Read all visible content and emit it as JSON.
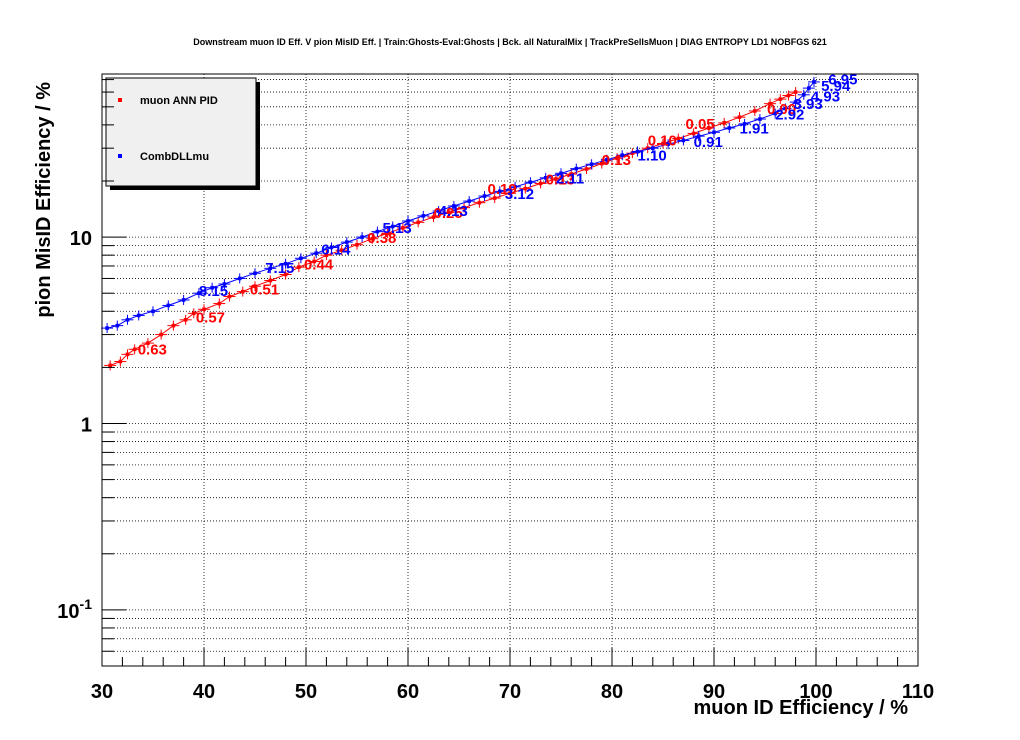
{
  "chart_data": {
    "type": "scatter",
    "title": "Downstream muon ID Eff. V pion MisID Eff. | Train:Ghosts-Eval:Ghosts | Bck. all NaturalMix | TrackPreSelIsMuon | DIAG ENTROPY LD1 NOBFGS 621",
    "xlabel": "muon ID Efficiency / %",
    "ylabel": "pion MisID Efficiency / %",
    "xlim": [
      30,
      110
    ],
    "ylim": [
      0.05,
      75
    ],
    "yscale": "log",
    "grid": true,
    "legend_position": "top-left",
    "x_ticks": [
      "30",
      "40",
      "50",
      "60",
      "70",
      "80",
      "90",
      "100",
      "110"
    ],
    "y_ticks": [
      {
        "value": 0.1,
        "base": "10",
        "exp": "-1"
      },
      {
        "value": 1,
        "base": "1",
        "exp": ""
      },
      {
        "value": 10,
        "base": "10",
        "exp": ""
      }
    ],
    "series": [
      {
        "name": "muon ANN PID",
        "color": "#ff0000",
        "points": [
          [
            30.8,
            2.05
          ],
          [
            31.8,
            2.15
          ],
          [
            32.5,
            2.35
          ],
          [
            33.2,
            2.5
          ],
          [
            34.5,
            2.7
          ],
          [
            35.8,
            3.0
          ],
          [
            37.0,
            3.35
          ],
          [
            38.2,
            3.6
          ],
          [
            39.0,
            3.9
          ],
          [
            40.0,
            4.1
          ],
          [
            41.5,
            4.4
          ],
          [
            42.5,
            4.8
          ],
          [
            43.8,
            5.1
          ],
          [
            45.0,
            5.45
          ],
          [
            46.5,
            5.85
          ],
          [
            48.0,
            6.3
          ],
          [
            49.3,
            6.9
          ],
          [
            50.8,
            7.4
          ],
          [
            52.0,
            8.0
          ],
          [
            53.5,
            8.5
          ],
          [
            55.0,
            9.1
          ],
          [
            56.5,
            9.8
          ],
          [
            58.0,
            10.5
          ],
          [
            59.5,
            11.2
          ],
          [
            61.0,
            12.0
          ],
          [
            62.5,
            12.8
          ],
          [
            64.0,
            13.6
          ],
          [
            65.5,
            14.4
          ],
          [
            67.0,
            15.3
          ],
          [
            68.5,
            16.2
          ],
          [
            70.0,
            17.2
          ],
          [
            71.5,
            18.2
          ],
          [
            73.0,
            19.4
          ],
          [
            74.5,
            20.5
          ],
          [
            76.0,
            21.8
          ],
          [
            77.5,
            23.2
          ],
          [
            79.0,
            24.8
          ],
          [
            80.5,
            26.5
          ],
          [
            82.0,
            28.2
          ],
          [
            83.5,
            30.0
          ],
          [
            85.0,
            31.8
          ],
          [
            86.5,
            33.8
          ],
          [
            88.0,
            36.0
          ],
          [
            89.5,
            38.5
          ],
          [
            91.0,
            41.0
          ],
          [
            92.5,
            44.0
          ],
          [
            94.0,
            47.5
          ],
          [
            95.5,
            52.0
          ],
          [
            96.5,
            55.0
          ],
          [
            97.3,
            57.5
          ],
          [
            98.0,
            60.0
          ]
        ],
        "labels": [
          {
            "x": 33.5,
            "y": 2.52,
            "text": "0.63"
          },
          {
            "x": 39.2,
            "y": 3.75,
            "text": "0.57"
          },
          {
            "x": 44.5,
            "y": 5.3,
            "text": "0.51"
          },
          {
            "x": 49.8,
            "y": 7.2,
            "text": "0.44"
          },
          {
            "x": 56.0,
            "y": 10.0,
            "text": "0.38"
          },
          {
            "x": 62.5,
            "y": 13.6,
            "text": "0.25"
          },
          {
            "x": 67.8,
            "y": 18.3,
            "text": "0.19"
          },
          {
            "x": 73.5,
            "y": 20.6,
            "text": "0.13"
          },
          {
            "x": 79.0,
            "y": 26.2,
            "text": "0.13"
          },
          {
            "x": 83.5,
            "y": 33.4,
            "text": "0.10"
          },
          {
            "x": 87.2,
            "y": 41.0,
            "text": "0.05"
          },
          {
            "x": 95.2,
            "y": 49.2,
            "text": "0.00"
          }
        ]
      },
      {
        "name": "CombDLLmu",
        "color": "#0000ff",
        "points": [
          [
            30.5,
            3.25
          ],
          [
            31.5,
            3.35
          ],
          [
            32.5,
            3.6
          ],
          [
            33.6,
            3.8
          ],
          [
            35.0,
            4.0
          ],
          [
            36.5,
            4.3
          ],
          [
            38.0,
            4.6
          ],
          [
            39.5,
            5.0
          ],
          [
            40.8,
            5.35
          ],
          [
            42.0,
            5.6
          ],
          [
            43.5,
            6.0
          ],
          [
            45.0,
            6.4
          ],
          [
            46.5,
            6.8
          ],
          [
            48.0,
            7.2
          ],
          [
            49.5,
            7.7
          ],
          [
            51.0,
            8.2
          ],
          [
            52.5,
            8.8
          ],
          [
            54.0,
            9.4
          ],
          [
            55.5,
            10.0
          ],
          [
            57.0,
            10.7
          ],
          [
            58.5,
            11.4
          ],
          [
            60.0,
            12.2
          ],
          [
            61.5,
            13.0
          ],
          [
            63.0,
            13.8
          ],
          [
            64.5,
            14.7
          ],
          [
            66.0,
            15.6
          ],
          [
            67.5,
            16.6
          ],
          [
            69.0,
            17.6
          ],
          [
            70.5,
            18.6
          ],
          [
            72.0,
            19.7
          ],
          [
            73.5,
            20.8
          ],
          [
            75.0,
            22.0
          ],
          [
            76.5,
            23.3
          ],
          [
            78.0,
            24.6
          ],
          [
            79.5,
            26.0
          ],
          [
            81.0,
            27.5
          ],
          [
            82.5,
            28.8
          ],
          [
            84.0,
            30.0
          ],
          [
            85.5,
            31.5
          ],
          [
            87.0,
            33.0
          ],
          [
            88.5,
            34.8
          ],
          [
            90.0,
            36.5
          ],
          [
            91.5,
            38.5
          ],
          [
            93.0,
            40.5
          ],
          [
            94.5,
            43.0
          ],
          [
            96.0,
            46.0
          ],
          [
            97.0,
            49.0
          ],
          [
            98.0,
            53.0
          ],
          [
            98.8,
            58.0
          ],
          [
            99.3,
            63.0
          ],
          [
            99.8,
            68.0
          ]
        ],
        "labels": [
          {
            "x": 39.5,
            "y": 5.2,
            "text": "8.15"
          },
          {
            "x": 46.0,
            "y": 6.9,
            "text": "7.15"
          },
          {
            "x": 51.5,
            "y": 8.7,
            "text": "6.14"
          },
          {
            "x": 57.5,
            "y": 11.3,
            "text": "5.13"
          },
          {
            "x": 63.0,
            "y": 14.0,
            "text": "4.13"
          },
          {
            "x": 69.5,
            "y": 17.2,
            "text": "3.12"
          },
          {
            "x": 74.5,
            "y": 20.9,
            "text": "2.11"
          },
          {
            "x": 82.5,
            "y": 27.8,
            "text": "1.10"
          },
          {
            "x": 88.0,
            "y": 32.8,
            "text": "0.91"
          },
          {
            "x": 92.5,
            "y": 38.8,
            "text": "1.91"
          },
          {
            "x": 96.0,
            "y": 46.0,
            "text": "2.92"
          },
          {
            "x": 97.8,
            "y": 52.5,
            "text": "3.93"
          },
          {
            "x": 99.5,
            "y": 57.5,
            "text": "4.93"
          },
          {
            "x": 100.5,
            "y": 65.5,
            "text": "5.94"
          },
          {
            "x": 101.2,
            "y": 71.0,
            "text": "6.95"
          }
        ]
      }
    ]
  }
}
